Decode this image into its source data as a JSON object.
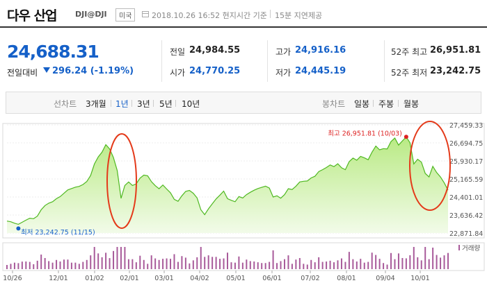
{
  "header": {
    "name": "다우 산업",
    "code": "DJI@DJI",
    "market_badge": "미국",
    "timestamp": "2018.10.26 16:52 현지시간 기준",
    "delay_note": "15분 지연제공"
  },
  "quote": {
    "price": "24,688.31",
    "change_label": "전일대비",
    "change": "296.24 (-1.19%)",
    "direction": "down",
    "fields": [
      {
        "label": "전일",
        "value": "24,984.55",
        "color": "#222222"
      },
      {
        "label": "고가",
        "value": "24,916.16",
        "color": "#1560c8"
      },
      {
        "label": "52주 최고",
        "value": "26,951.81",
        "color": "#222222"
      },
      {
        "label": "시가",
        "value": "24,770.25",
        "color": "#1560c8"
      },
      {
        "label": "저가",
        "value": "24,445.19",
        "color": "#1560c8"
      },
      {
        "label": "52주 최저",
        "value": "23,242.75",
        "color": "#222222"
      }
    ]
  },
  "tabs": {
    "line_label": "선차트",
    "line_periods": [
      {
        "label": "3개월",
        "selected": false
      },
      {
        "label": "1년",
        "selected": true
      },
      {
        "label": "3년",
        "selected": false
      },
      {
        "label": "5년",
        "selected": false
      },
      {
        "label": "10년",
        "selected": false
      }
    ],
    "candle_label": "봉차트",
    "candle_periods": [
      {
        "label": "일봉"
      },
      {
        "label": "주봉"
      },
      {
        "label": "월봉"
      }
    ]
  },
  "chart_data": {
    "type": "area",
    "y_ticks": [
      "27,459.33",
      "26,694.75",
      "25,930.17",
      "25,165.59",
      "24,401.01",
      "23,636.42",
      "22,871.84"
    ],
    "ylim": [
      22871.84,
      27459.33
    ],
    "x_ticks": [
      "10/26",
      "12/01",
      "01/02",
      "02/01",
      "03/01",
      "04/02",
      "05/01",
      "06/01",
      "07/02",
      "08/01",
      "09/04",
      "10/01"
    ],
    "max_annotation": "최고 26,951.81 (10/03)",
    "min_annotation": "최저 23,242.75 (11/15)",
    "volume_label": "거래량",
    "series": [
      {
        "values": [
          23380,
          23350,
          23290,
          23242.75,
          23330,
          23420,
          23500,
          23480,
          23590,
          23860,
          24040,
          24140,
          24200,
          24330,
          24420,
          24560,
          24700,
          24760,
          24820,
          24850,
          24930,
          25060,
          25310,
          25800,
          26100,
          26300,
          26617,
          26439,
          26076,
          25520,
          24345,
          24890,
          25040,
          24890,
          24960,
          25200,
          25330,
          25300,
          25050,
          24880,
          24750,
          24910,
          24740,
          24580,
          24300,
          24220,
          24450,
          24640,
          24680,
          24560,
          24360,
          23860,
          23650,
          23900,
          24110,
          24320,
          24480,
          24650,
          24330,
          24260,
          24200,
          24420,
          24360,
          24500,
          24600,
          24690,
          24760,
          24810,
          24860,
          24780,
          24400,
          24450,
          24350,
          24500,
          24750,
          24720,
          24860,
          25040,
          25070,
          25080,
          25210,
          25280,
          25480,
          25560,
          25650,
          25760,
          25690,
          25810,
          25640,
          25560,
          25900,
          26050,
          25960,
          26120,
          26060,
          25980,
          26300,
          26560,
          26400,
          26450,
          26440,
          26750,
          26900,
          26600,
          26780,
          26951.81,
          26700,
          25800,
          26000,
          25880,
          25400,
          25250,
          25700,
          25440,
          25250,
          25000,
          24688.31
        ]
      }
    ],
    "colors": {
      "line": "#4fb821",
      "fill_top": "#b9ea84",
      "fill_bottom": "#f2fbe9",
      "annotation": "#dd2222",
      "min_marker": "#1560c8"
    }
  }
}
